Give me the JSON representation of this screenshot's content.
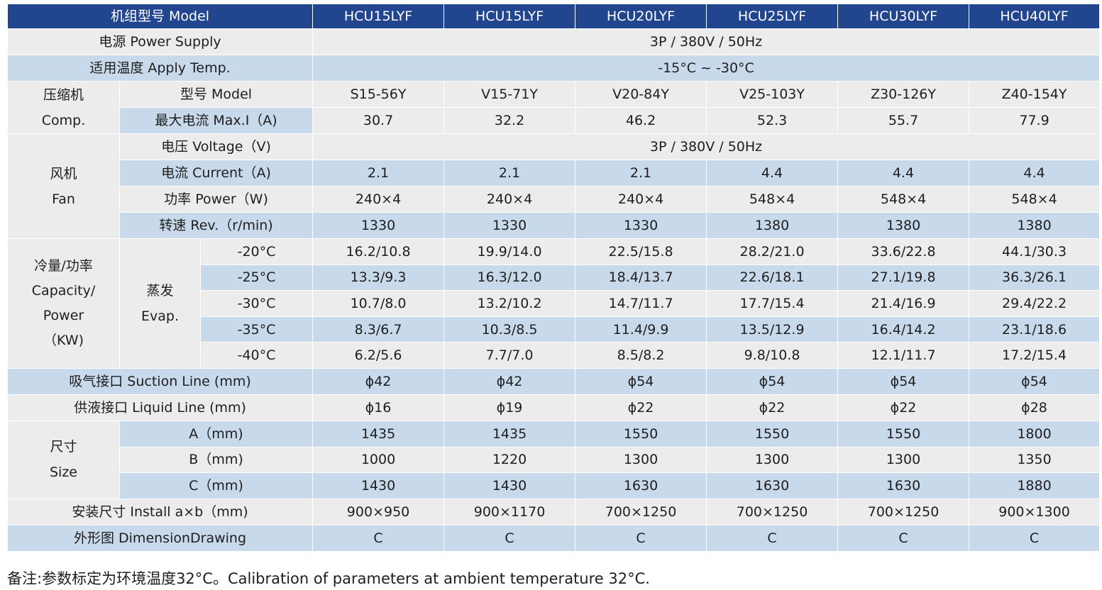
{
  "header": {
    "label": "机组型号 Model",
    "models": [
      "HCU15LYF",
      "HCU15LYF",
      "HCU20LYF",
      "HCU25LYF",
      "HCU30LYF",
      "HCU40LYF"
    ]
  },
  "power_supply": {
    "label": "电源 Power Supply",
    "value": "3P / 380V / 50Hz"
  },
  "apply_temp": {
    "label": "适用温度 Apply Temp.",
    "value": "-15°C ~ -30°C"
  },
  "comp": {
    "group_cn": "压缩机",
    "group_en": "Comp.",
    "model_label": "型号 Model",
    "models": [
      "S15-56Y",
      "V15-71Y",
      "V20-84Y",
      "V25-103Y",
      "Z30-126Y",
      "Z40-154Y"
    ],
    "current_label": "最大电流 Max.I（A)",
    "currents": [
      "30.7",
      "32.2",
      "46.2",
      "52.3",
      "55.7",
      "77.9"
    ]
  },
  "fan": {
    "group_cn": "风机",
    "group_en": "Fan",
    "voltage_label": "电压 Voltage（V)",
    "voltage_value": "3P / 380V / 50Hz",
    "current_label": "电流 Current（A)",
    "currents": [
      "2.1",
      "2.1",
      "2.1",
      "4.4",
      "4.4",
      "4.4"
    ],
    "power_label": "功率 Power（W)",
    "powers": [
      "240×4",
      "240×4",
      "240×4",
      "548×4",
      "548×4",
      "548×4"
    ],
    "rev_label": "转速 Rev.（r/min)",
    "revs": [
      "1330",
      "1330",
      "1330",
      "1380",
      "1380",
      "1380"
    ]
  },
  "capacity": {
    "group_cn": "冷量/功率",
    "group_en1": "Capacity/",
    "group_en2": "Power",
    "group_unit": "（KW)",
    "evap_cn": "蒸发",
    "evap_en": "Evap.",
    "rows": [
      {
        "temp": "-20°C",
        "values": [
          "16.2/10.8",
          "19.9/14.0",
          "22.5/15.8",
          "28.2/21.0",
          "33.6/22.8",
          "44.1/30.3"
        ]
      },
      {
        "temp": "-25°C",
        "values": [
          "13.3/9.3",
          "16.3/12.0",
          "18.4/13.7",
          "22.6/18.1",
          "27.1/19.8",
          "36.3/26.1"
        ]
      },
      {
        "temp": "-30°C",
        "values": [
          "10.7/8.0",
          "13.2/10.2",
          "14.7/11.7",
          "17.7/15.4",
          "21.4/16.9",
          "29.4/22.2"
        ]
      },
      {
        "temp": "-35°C",
        "values": [
          "8.3/6.7",
          "10.3/8.5",
          "11.4/9.9",
          "13.5/12.9",
          "16.4/14.2",
          "23.1/18.6"
        ]
      },
      {
        "temp": "-40°C",
        "values": [
          "6.2/5.6",
          "7.7/7.0",
          "8.5/8.2",
          "9.8/10.8",
          "12.1/11.7",
          "17.2/15.4"
        ]
      }
    ]
  },
  "suction": {
    "label": "吸气接口 Suction Line (mm)",
    "values": [
      "ϕ42",
      "ϕ42",
      "ϕ54",
      "ϕ54",
      "ϕ54",
      "ϕ54"
    ]
  },
  "liquid": {
    "label": "供液接口 Liquid Line (mm)",
    "values": [
      "ϕ16",
      "ϕ19",
      "ϕ22",
      "ϕ22",
      "ϕ22",
      "ϕ28"
    ]
  },
  "size": {
    "group_cn": "尺寸",
    "group_en": "Size",
    "rows": [
      {
        "label": "A（mm)",
        "values": [
          "1435",
          "1435",
          "1550",
          "1550",
          "1550",
          "1800"
        ]
      },
      {
        "label": "B（mm)",
        "values": [
          "1000",
          "1220",
          "1300",
          "1300",
          "1300",
          "1350"
        ]
      },
      {
        "label": "C（mm)",
        "values": [
          "1430",
          "1430",
          "1630",
          "1630",
          "1630",
          "1880"
        ]
      }
    ]
  },
  "install": {
    "label": "安装尺寸  Install a×b（mm)",
    "values": [
      "900×950",
      "900×1170",
      "700×1250",
      "700×1250",
      "700×1250",
      "900×1300"
    ]
  },
  "drawing": {
    "label": "外形图 DimensionDrawing",
    "values": [
      "C",
      "C",
      "C",
      "C",
      "C",
      "C"
    ]
  },
  "note": "备注:参数标定为环境温度32°C。Calibration of parameters at ambient temperature 32°C."
}
